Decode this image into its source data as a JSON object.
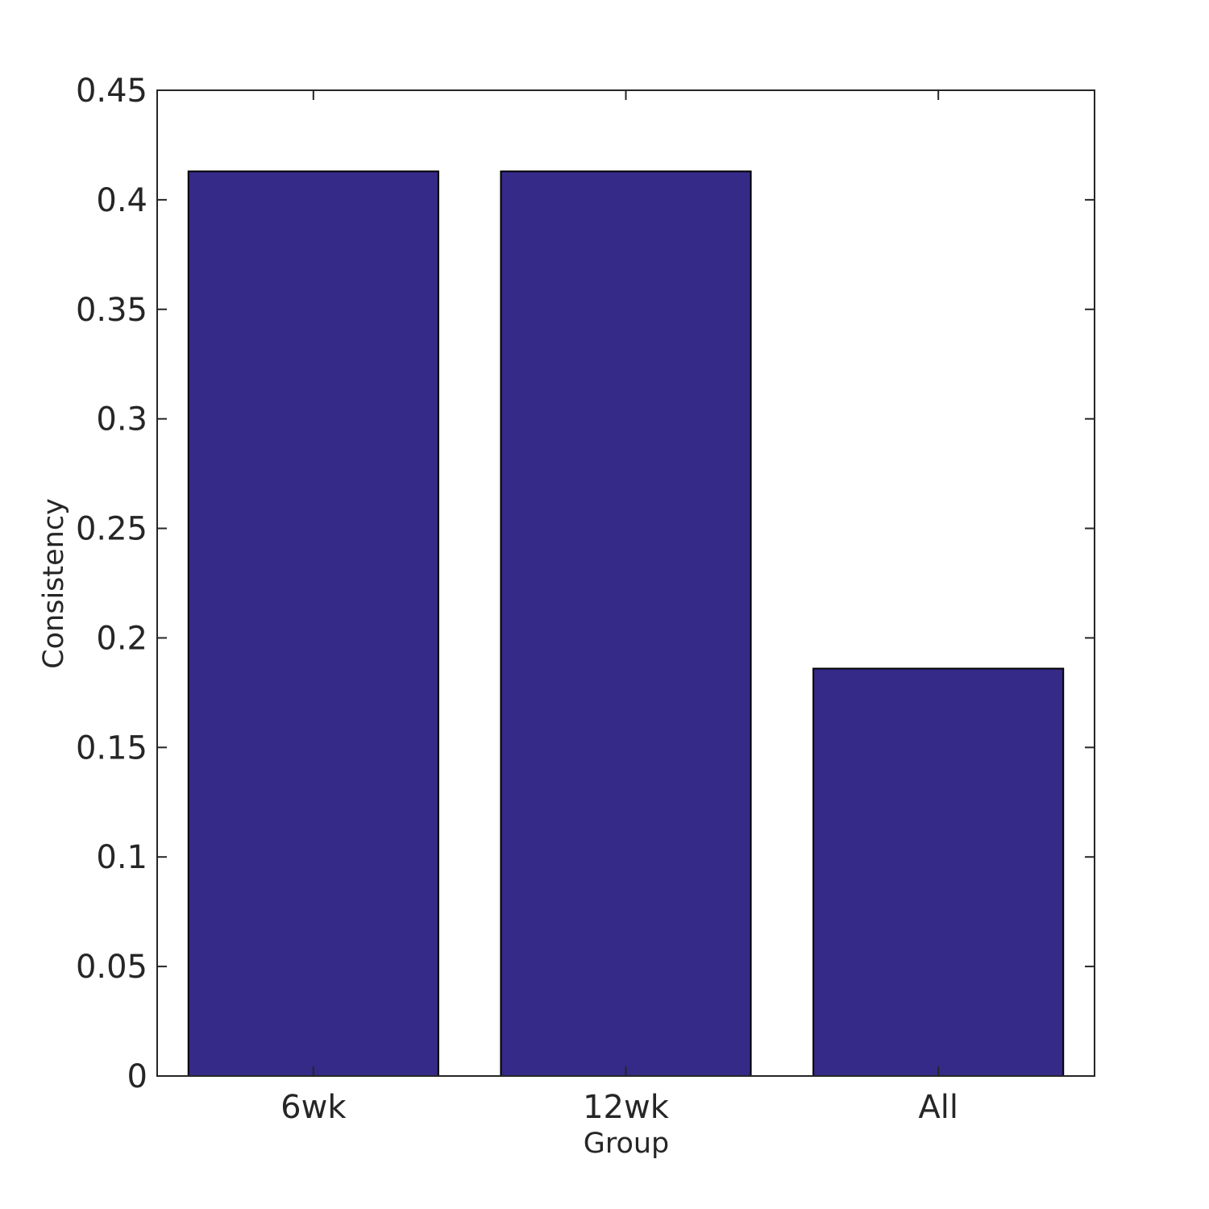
{
  "chart_data": {
    "type": "bar",
    "categories": [
      "6wk",
      "12wk",
      "All"
    ],
    "values": [
      0.413,
      0.413,
      0.186
    ],
    "title": "",
    "xlabel": "Group",
    "ylabel": "Consistency",
    "ylim": [
      0,
      0.45
    ],
    "yticks": [
      "0",
      "0.05",
      "0.1",
      "0.15",
      "0.2",
      "0.25",
      "0.3",
      "0.35",
      "0.4",
      "0.45"
    ],
    "grid": false,
    "colors": {
      "bar_fill": "#352a87",
      "bar_edge": "#000000",
      "axis": "#262626"
    }
  }
}
